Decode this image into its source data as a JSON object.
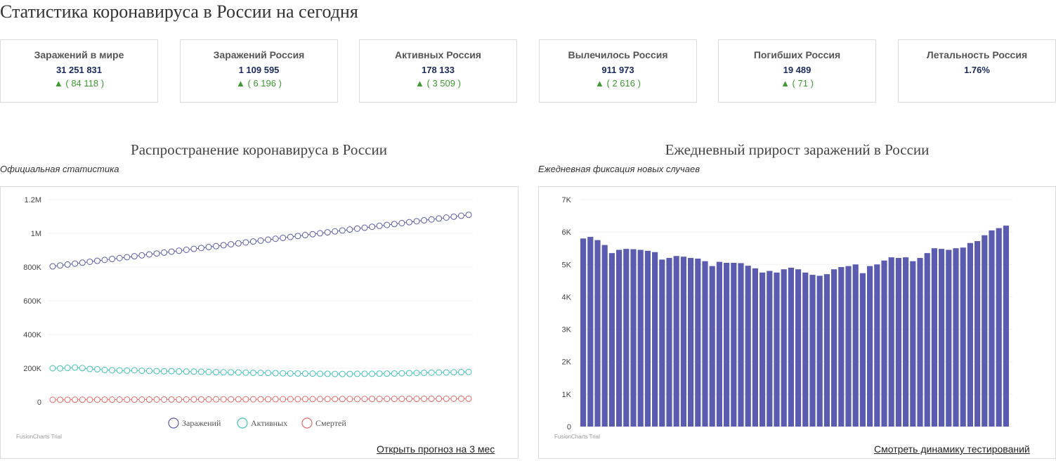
{
  "page": {
    "title": "Статистика коронавируса в России на сегодня"
  },
  "stats": [
    {
      "label": "Заражений в мире",
      "value": "31 251 831",
      "delta": "▲ ( 84 118 )"
    },
    {
      "label": "Заражений Россия",
      "value": "1 109 595",
      "delta": "▲ ( 6 196 )"
    },
    {
      "label": "Активных Россия",
      "value": "178 133",
      "delta": "▲ ( 3 509 )"
    },
    {
      "label": "Вылечилось Россия",
      "value": "911 973",
      "delta": "▲ ( 2 616 )"
    },
    {
      "label": "Погибших Россия",
      "value": "19 489",
      "delta": "▲ ( 71 )"
    },
    {
      "label": "Летальность Россия",
      "value": "1.76%",
      "delta": ""
    }
  ],
  "colors": {
    "infected": "#5b5ca8",
    "active": "#3fc3b8",
    "deaths": "#e36b6b",
    "bars": "#5b5cb0",
    "up": "#3c9a2f"
  },
  "charts": {
    "spread": {
      "title": "Распространение коронавируса в России",
      "subtitle": "Официальная статистика",
      "link": "Открыть прогноз на 3 мес",
      "trial": "FusionCharts Trial"
    },
    "daily": {
      "title": "Ежедневный прирост заражений в России",
      "subtitle": "Ежедневная фиксация новых случаев",
      "link": "Смотреть динамику тестирований",
      "trial": "FusionCharts Trial"
    }
  },
  "chart_data": [
    {
      "type": "line",
      "ylim": [
        0,
        1200000
      ],
      "yticks": [
        "0",
        "200K",
        "400K",
        "600K",
        "800K",
        "1M",
        "1.2M"
      ],
      "ytick_values": [
        0,
        200000,
        400000,
        600000,
        800000,
        1000000,
        1200000
      ],
      "grid": true,
      "legend_position": "bottom",
      "series": [
        {
          "name": "Заражений",
          "start": 804000,
          "end": 1109595
        },
        {
          "name": "Активных",
          "values": [
            200000,
            199000,
            202000,
            204000,
            201000,
            196000,
            194000,
            190000,
            188000,
            187000,
            186000,
            188000,
            185000,
            184000,
            183000,
            182000,
            183000,
            181000,
            180000,
            180000,
            179000,
            178000,
            177000,
            176000,
            176000,
            175000,
            174000,
            173000,
            173000,
            172000,
            171000,
            170000,
            169000,
            169000,
            168000,
            168000,
            167000,
            167000,
            166000,
            166000,
            166000,
            167000,
            167000,
            167000,
            168000,
            168000,
            169000,
            170000,
            171000,
            172000,
            173000,
            174000,
            175000,
            175000,
            176000,
            177000,
            178133
          ]
        },
        {
          "name": "Смертей",
          "start": 13000,
          "end": 19489
        }
      ]
    },
    {
      "type": "bar",
      "ylim": [
        0,
        7000
      ],
      "yticks": [
        "0",
        "1K",
        "2K",
        "3K",
        "4K",
        "5K",
        "6K",
        "7K"
      ],
      "ytick_values": [
        0,
        1000,
        2000,
        3000,
        4000,
        5000,
        6000,
        7000
      ],
      "grid": true,
      "values": [
        5800,
        5850,
        5750,
        5600,
        5350,
        5450,
        5480,
        5470,
        5450,
        5420,
        5380,
        5150,
        5200,
        5260,
        5240,
        5200,
        5180,
        5100,
        4950,
        5080,
        5050,
        5050,
        5040,
        4960,
        4880,
        4750,
        4800,
        4750,
        4850,
        4900,
        4850,
        4750,
        4680,
        4650,
        4700,
        4850,
        4920,
        4950,
        5000,
        4730,
        4950,
        5000,
        5120,
        5220,
        5200,
        5220,
        5100,
        5200,
        5350,
        5500,
        5480,
        5450,
        5500,
        5520,
        5660,
        5720,
        5900,
        6050,
        6120,
        6196
      ]
    }
  ]
}
